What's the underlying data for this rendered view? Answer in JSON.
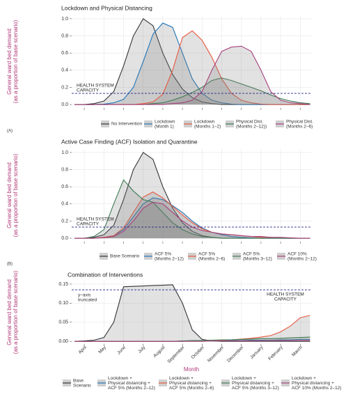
{
  "chart_data": [
    {
      "type": "line",
      "title": "Lockdown and Physical Distancing",
      "panel_label": "(A)",
      "ylabel": [
        "General ward bed demand",
        "(as a proportion of base scenario)"
      ],
      "ylim": [
        -0.04,
        1.04
      ],
      "yticks": [
        {
          "value": 0,
          "label": "0.0"
        },
        0.2,
        0.4,
        0.6,
        0.8,
        {
          "value": 1,
          "label": "1.0"
        }
      ],
      "grid": true,
      "capacity": {
        "value": 0.13,
        "label": "HEALTH SYSTEM\nCAPACITY"
      },
      "categories": [
        null,
        null,
        null,
        null,
        null,
        null,
        null,
        null,
        null,
        null,
        null,
        null,
        null,
        null,
        null,
        null,
        null,
        null,
        null,
        null,
        null,
        null,
        null,
        null,
        null
      ],
      "series": [
        {
          "name": "No Intervention",
          "color": "#2f3338",
          "values": [
            0,
            0,
            0.01,
            0.04,
            0.15,
            0.45,
            0.8,
            1.0,
            0.92,
            0.6,
            0.35,
            0.18,
            0.08,
            0.03,
            0.01,
            0,
            0,
            0,
            0,
            0,
            0,
            0,
            0,
            0,
            0
          ]
        },
        {
          "name": "Lockdown\n(Month 1)",
          "color": "#1f74b8",
          "values": [
            0,
            0,
            0,
            0.005,
            0.02,
            0.06,
            0.2,
            0.5,
            0.82,
            0.95,
            0.9,
            0.6,
            0.3,
            0.13,
            0.05,
            0.02,
            0.005,
            0,
            0,
            0,
            0,
            0,
            0,
            0,
            0
          ]
        },
        {
          "name": "Lockdown\n(Months 1–2)",
          "color": "#e9573f",
          "values": [
            0,
            0,
            0,
            0,
            0,
            0,
            0,
            0.01,
            0.03,
            0.12,
            0.4,
            0.78,
            0.86,
            0.75,
            0.55,
            0.3,
            0.13,
            0.05,
            0.02,
            0.005,
            0,
            0,
            0,
            0,
            0
          ]
        },
        {
          "name": "Physical Dist.\n(Months 2–12))",
          "color": "#3d7a52",
          "values": [
            0,
            0,
            0,
            0,
            0,
            0,
            0,
            0,
            0.01,
            0.02,
            0.05,
            0.09,
            0.14,
            0.2,
            0.28,
            0.31,
            0.28,
            0.24,
            0.2,
            0.16,
            0.11,
            0.07,
            0.04,
            0.02,
            0.01
          ]
        },
        {
          "name": "Physical Dist.\n(Months 2–6)",
          "color": "#a6427c",
          "values": [
            0,
            0,
            0,
            0,
            0,
            0,
            0,
            0,
            0,
            0,
            0.01,
            0.02,
            0.05,
            0.15,
            0.4,
            0.62,
            0.67,
            0.68,
            0.62,
            0.4,
            0.15,
            0.05,
            0.02,
            0.01,
            0
          ]
        }
      ]
    },
    {
      "type": "line",
      "title": "Active Case Finding (ACF) Isolation and Quarantine",
      "panel_label": "(B)",
      "ylabel": [
        "General ward bed demand",
        "(as a proportion of base scenario)"
      ],
      "ylim": [
        -0.04,
        1.04
      ],
      "yticks": [
        {
          "value": 0,
          "label": "0.0"
        },
        0.2,
        0.4,
        0.6,
        0.8,
        {
          "value": 1,
          "label": "1.0"
        }
      ],
      "grid": true,
      "capacity": {
        "value": 0.13,
        "label": "HEALTH SYSTEM\nCAPACITY"
      },
      "categories": [
        null,
        null,
        null,
        null,
        null,
        null,
        null,
        null,
        null,
        null,
        null,
        null,
        null,
        null,
        null,
        null,
        null,
        null,
        null,
        null,
        null,
        null,
        null,
        null,
        null
      ],
      "series": [
        {
          "name": "Base Scenario",
          "color": "#2f3338",
          "values": [
            0,
            0,
            0.01,
            0.04,
            0.15,
            0.45,
            0.8,
            1.0,
            0.92,
            0.6,
            0.35,
            0.18,
            0.08,
            0.03,
            0.01,
            0,
            0,
            0,
            0,
            0,
            0,
            0,
            0,
            0,
            0
          ]
        },
        {
          "name": "ACF 5%\n(Months 2–12)",
          "color": "#1f74b8",
          "values": [
            0,
            0,
            0,
            0.01,
            0.03,
            0.1,
            0.25,
            0.4,
            0.47,
            0.45,
            0.38,
            0.3,
            0.2,
            0.12,
            0.07,
            0.04,
            0.02,
            0.01,
            0.005,
            0,
            0,
            0,
            0,
            0,
            0
          ]
        },
        {
          "name": "ACF 5%\n(Months 2–6)",
          "color": "#e9573f",
          "values": [
            0,
            0,
            0,
            0.01,
            0.03,
            0.12,
            0.3,
            0.48,
            0.54,
            0.47,
            0.37,
            0.27,
            0.18,
            0.11,
            0.07,
            0.05,
            0.04,
            0.03,
            0.02,
            0.01,
            0.01,
            0,
            0,
            0,
            0
          ]
        },
        {
          "name": "ACF 5%\n(Months 3–12)",
          "color": "#3d7a52",
          "values": [
            0,
            0,
            0.02,
            0.1,
            0.4,
            0.68,
            0.55,
            0.45,
            0.42,
            0.3,
            0.18,
            0.1,
            0.05,
            0.02,
            0.01,
            0,
            0,
            0,
            0,
            0,
            0,
            0,
            0,
            0,
            0
          ]
        },
        {
          "name": "ACF 10%\n(Months 2–12)",
          "color": "#a6427c",
          "values": [
            0,
            0,
            0,
            0.005,
            0.02,
            0.08,
            0.2,
            0.35,
            0.42,
            0.4,
            0.3,
            0.2,
            0.13,
            0.09,
            0.07,
            0.05,
            0.04,
            0.03,
            0.02,
            0.02,
            0.01,
            0.01,
            0.005,
            0,
            0
          ]
        }
      ]
    },
    {
      "type": "line",
      "title": "Combination of Interventions",
      "ylabel": [
        "General ward bed demand",
        "(as a proportion of base scenario)"
      ],
      "xlabel": "Month",
      "ylim": [
        -0.007,
        0.159
      ],
      "yticks": [
        {
          "value": 0,
          "label": "0.00"
        },
        0.05,
        {
          "value": 0.1,
          "label": "0.10"
        },
        0.15
      ],
      "grid": true,
      "annotation": "y–axis\ntruncated",
      "capacity": {
        "value": 0.135,
        "label": "HEALTH SYSTEM\nCAPACITY"
      },
      "categories": [
        null,
        "April",
        null,
        "May",
        null,
        "June",
        null,
        "July",
        null,
        "August",
        null,
        "September",
        null,
        "October",
        null,
        "November",
        null,
        "December",
        null,
        "January",
        null,
        "February",
        null,
        "March",
        null
      ],
      "series": [
        {
          "name": "Base\nScenario",
          "color": "#2f3338",
          "values": [
            0,
            0.001,
            0.003,
            0.01,
            0.05,
            0.143,
            0.144,
            0.145,
            0.146,
            0.147,
            0.148,
            0.1,
            0.03,
            0.005,
            0.001,
            0,
            0,
            0,
            0,
            0,
            0,
            0,
            0,
            0,
            0
          ]
        },
        {
          "name": "Lockdown +\nPhysical distancing +\nACF 5% (Months 2–12)",
          "color": "#1f74b8",
          "values": [
            0,
            0,
            0,
            0,
            0,
            0,
            0,
            0,
            0,
            0,
            0,
            0,
            0.001,
            0.001,
            0.001,
            0.002,
            0.002,
            0.002,
            0.003,
            0.003,
            0.003,
            0.004,
            0.004,
            0.005,
            0.005
          ]
        },
        {
          "name": "Lockdown +\nPhysical distancing +\nACF 5% (Months 2–6)",
          "color": "#e9573f",
          "values": [
            0,
            0,
            0,
            0,
            0,
            0,
            0,
            0,
            0,
            0,
            0,
            0.001,
            0.001,
            0.002,
            0.003,
            0.003,
            0.004,
            0.006,
            0.008,
            0.011,
            0.015,
            0.025,
            0.04,
            0.062,
            0.068
          ]
        },
        {
          "name": "Lockdown +\nPhysical distancing +\nACF 5% (Months 3–12)",
          "color": "#3d7a52",
          "values": [
            0,
            0,
            0,
            0,
            0,
            0,
            0,
            0,
            0,
            0,
            0,
            0.001,
            0.002,
            0.002,
            0.003,
            0.004,
            0.004,
            0.005,
            0.006,
            0.007,
            0.007,
            0.008,
            0.009,
            0.01,
            0.011
          ]
        },
        {
          "name": "Lockdown +\nPhysical distancing +\nACF 10% (Months 2–12)",
          "color": "#a6427c",
          "values": [
            0,
            0,
            0,
            0,
            0,
            0,
            0,
            0,
            0,
            0,
            0,
            0,
            0,
            0,
            0.001,
            0.001,
            0.001,
            0.001,
            0.001,
            0.001,
            0.002,
            0.002,
            0.002,
            0.002,
            0.002
          ]
        }
      ]
    }
  ]
}
